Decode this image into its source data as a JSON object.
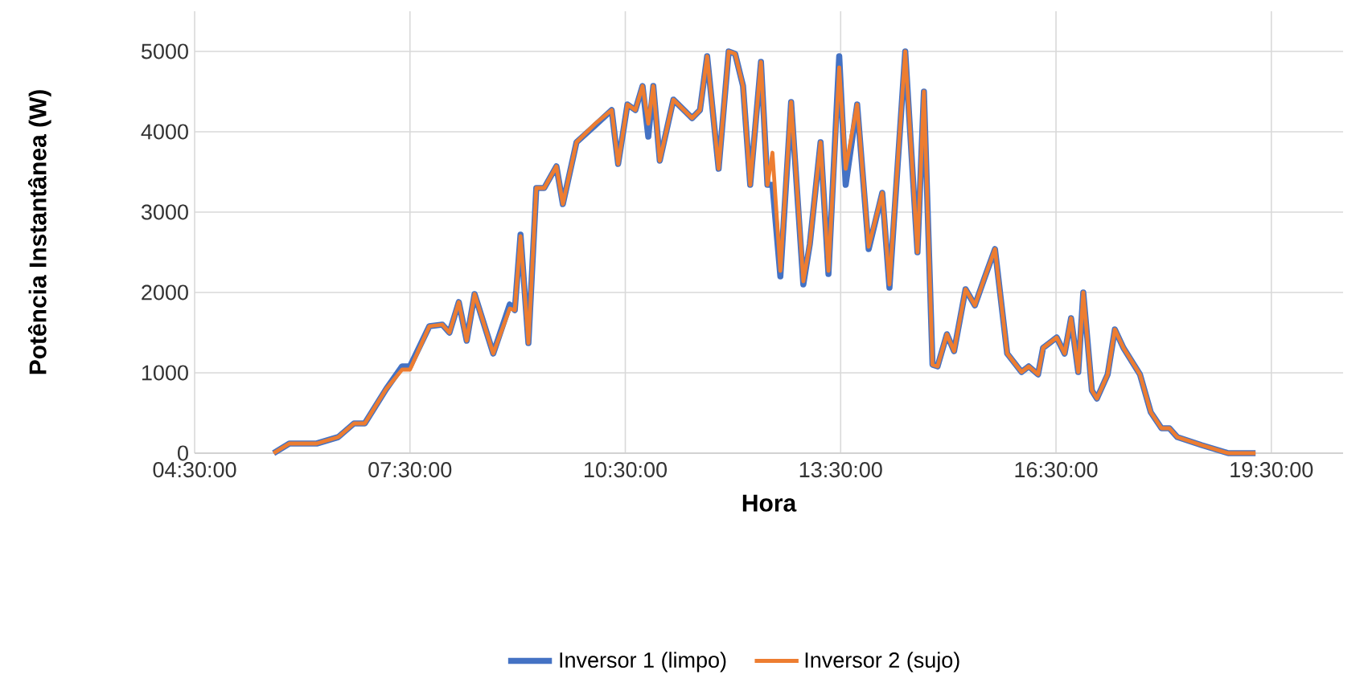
{
  "chart_data": {
    "type": "line",
    "xlabel": "Hora",
    "ylabel": "Potência Instantânea (W)",
    "xlim": [
      4.5,
      20.5
    ],
    "ylim": [
      0,
      5500
    ],
    "xticks": [
      {
        "value": 4.5,
        "label": "04:30:00"
      },
      {
        "value": 7.5,
        "label": "07:30:00"
      },
      {
        "value": 10.5,
        "label": "10:30:00"
      },
      {
        "value": 13.5,
        "label": "13:30:00"
      },
      {
        "value": 16.5,
        "label": "16:30:00"
      },
      {
        "value": 19.5,
        "label": "19:30:00"
      }
    ],
    "yticks": [
      0,
      1000,
      2000,
      3000,
      4000,
      5000
    ],
    "grid": true,
    "legend": "bottom",
    "marker": "none",
    "line_style": "solid",
    "x": [
      5.6,
      5.82,
      6.2,
      6.5,
      6.72,
      6.87,
      7.17,
      7.39,
      7.5,
      7.77,
      7.95,
      8.05,
      8.18,
      8.29,
      8.4,
      8.66,
      8.89,
      8.96,
      9.04,
      9.15,
      9.26,
      9.37,
      9.54,
      9.63,
      9.82,
      10.08,
      10.31,
      10.4,
      10.53,
      10.64,
      10.74,
      10.82,
      10.89,
      10.98,
      11.17,
      11.43,
      11.54,
      11.64,
      11.8,
      11.94,
      12.03,
      12.14,
      12.24,
      12.39,
      12.48,
      12.55,
      12.66,
      12.81,
      12.98,
      13.07,
      13.22,
      13.33,
      13.48,
      13.57,
      13.73,
      13.89,
      14.08,
      14.18,
      14.4,
      14.57,
      14.66,
      14.78,
      14.85,
      14.98,
      15.08,
      15.24,
      15.37,
      15.5,
      15.65,
      15.82,
      16.02,
      16.12,
      16.25,
      16.32,
      16.51,
      16.62,
      16.71,
      16.81,
      16.88,
      17.0,
      17.07,
      17.22,
      17.32,
      17.44,
      17.67,
      17.82,
      17.97,
      18.08,
      18.19,
      18.53,
      18.9,
      19.28
    ],
    "series": [
      {
        "name": "Inversor 1 (limpo)",
        "color": "#4472c4",
        "values": [
          0,
          120,
          120,
          200,
          370,
          370,
          800,
          1080,
          1080,
          1580,
          1600,
          1500,
          1880,
          1400,
          1980,
          1240,
          1850,
          1780,
          2720,
          1370,
          3300,
          3300,
          3570,
          3100,
          3870,
          4080,
          4270,
          3600,
          4340,
          4270,
          4570,
          3940,
          4570,
          3640,
          4400,
          4170,
          4270,
          4940,
          3540,
          5000,
          4970,
          4570,
          3340,
          4870,
          3340,
          3340,
          2200,
          4370,
          2100,
          2600,
          3870,
          2230,
          4940,
          3340,
          4340,
          2540,
          3240,
          2060,
          5000,
          2500,
          4500,
          1100,
          1080,
          1480,
          1270,
          2040,
          1840,
          2170,
          2540,
          1240,
          1010,
          1080,
          980,
          1310,
          1440,
          1240,
          1680,
          1010,
          2000,
          780,
          680,
          980,
          1540,
          1310,
          980,
          510,
          310,
          310,
          200,
          100,
          0,
          0
        ]
      },
      {
        "name": "Inversor 2 (sujo)",
        "color": "#ed7d31",
        "values": [
          0,
          120,
          120,
          200,
          370,
          370,
          800,
          1040,
          1040,
          1580,
          1600,
          1500,
          1880,
          1400,
          1980,
          1240,
          1800,
          1780,
          2700,
          1370,
          3300,
          3300,
          3570,
          3100,
          3870,
          4100,
          4270,
          3600,
          4340,
          4270,
          4570,
          4100,
          4570,
          3640,
          4400,
          4170,
          4270,
          4940,
          3540,
          5000,
          4970,
          4570,
          3340,
          4870,
          3340,
          3740,
          2270,
          4370,
          2140,
          2600,
          3870,
          2270,
          4800,
          3540,
          4340,
          2570,
          3240,
          2100,
          5000,
          2500,
          4500,
          1100,
          1080,
          1480,
          1270,
          2040,
          1840,
          2170,
          2540,
          1240,
          1010,
          1080,
          980,
          1310,
          1440,
          1240,
          1680,
          1010,
          2000,
          780,
          680,
          980,
          1540,
          1310,
          980,
          510,
          310,
          310,
          200,
          100,
          0,
          0
        ]
      }
    ]
  }
}
